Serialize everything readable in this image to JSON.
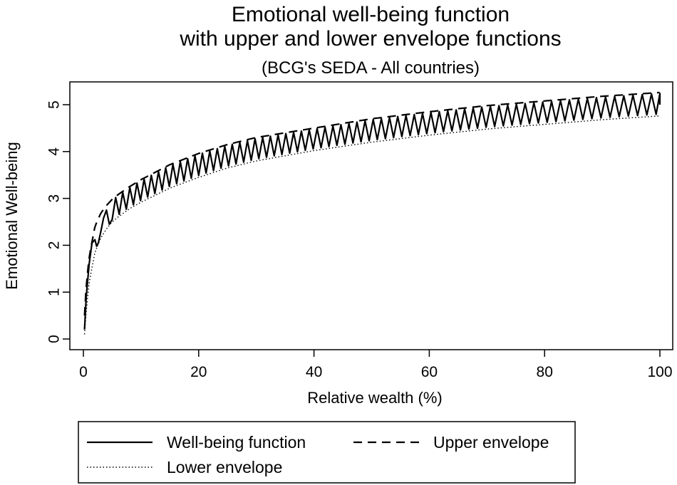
{
  "chart_data": {
    "type": "line",
    "title": [
      "Emotional well-being function",
      "with upper and lower envelope functions"
    ],
    "subtitle": "(BCG's SEDA - All countries)",
    "xlabel": "Relative wealth (%)",
    "ylabel": "Emotional Well-being",
    "xlim": [
      0,
      100
    ],
    "ylim": [
      0,
      5.5
    ],
    "xticks": [
      0,
      20,
      40,
      60,
      80,
      100
    ],
    "yticks": [
      0,
      1,
      2,
      3,
      4,
      5
    ],
    "xtick_labels": [
      "0",
      "20",
      "40",
      "60",
      "80",
      "100"
    ],
    "ytick_labels": [
      "0",
      "1",
      "2",
      "3",
      "4",
      "5"
    ],
    "grid": false,
    "legend_position": "bottom",
    "series": [
      {
        "name": "Well-being function",
        "style": "solid",
        "x": [
          0.2,
          0.5,
          1,
          1.5,
          2,
          2.3,
          2.6,
          3,
          3.5,
          4,
          4.5,
          5,
          6,
          7,
          8,
          10,
          12,
          15,
          20,
          25,
          30,
          40,
          50,
          60,
          70,
          80,
          90,
          100
        ],
        "values": [
          0.2,
          0.9,
          1.6,
          2.05,
          2.12,
          1.98,
          2.05,
          2.28,
          2.58,
          2.75,
          2.45,
          2.55,
          2.85,
          3.05,
          3.1,
          3.25,
          3.35,
          3.5,
          3.75,
          3.95,
          4.1,
          4.3,
          4.45,
          4.6,
          4.75,
          4.85,
          4.95,
          5.0
        ],
        "oscillation": {
          "period_start": 1.2,
          "period_end": 1.62,
          "amplitude": "between envelopes"
        }
      },
      {
        "name": "Upper envelope",
        "style": "dashed",
        "x": [
          0.2,
          0.5,
          1,
          2,
          3,
          4,
          5,
          6,
          8,
          10,
          15,
          20,
          25,
          30,
          40,
          50,
          60,
          70,
          80,
          90,
          100
        ],
        "values": [
          0.5,
          1.15,
          1.75,
          2.4,
          2.68,
          2.85,
          2.98,
          3.08,
          3.25,
          3.4,
          3.72,
          3.96,
          4.15,
          4.3,
          4.5,
          4.7,
          4.85,
          4.98,
          5.08,
          5.18,
          5.26
        ]
      },
      {
        "name": "Lower envelope",
        "style": "dotted",
        "x": [
          0.2,
          0.5,
          1,
          2,
          3,
          4,
          5,
          6,
          8,
          10,
          15,
          20,
          25,
          30,
          40,
          50,
          60,
          70,
          80,
          90,
          100
        ],
        "values": [
          0.1,
          0.6,
          1.2,
          1.85,
          2.15,
          2.35,
          2.5,
          2.6,
          2.78,
          2.92,
          3.22,
          3.45,
          3.65,
          3.8,
          4.02,
          4.2,
          4.35,
          4.48,
          4.58,
          4.68,
          4.76
        ]
      }
    ]
  }
}
